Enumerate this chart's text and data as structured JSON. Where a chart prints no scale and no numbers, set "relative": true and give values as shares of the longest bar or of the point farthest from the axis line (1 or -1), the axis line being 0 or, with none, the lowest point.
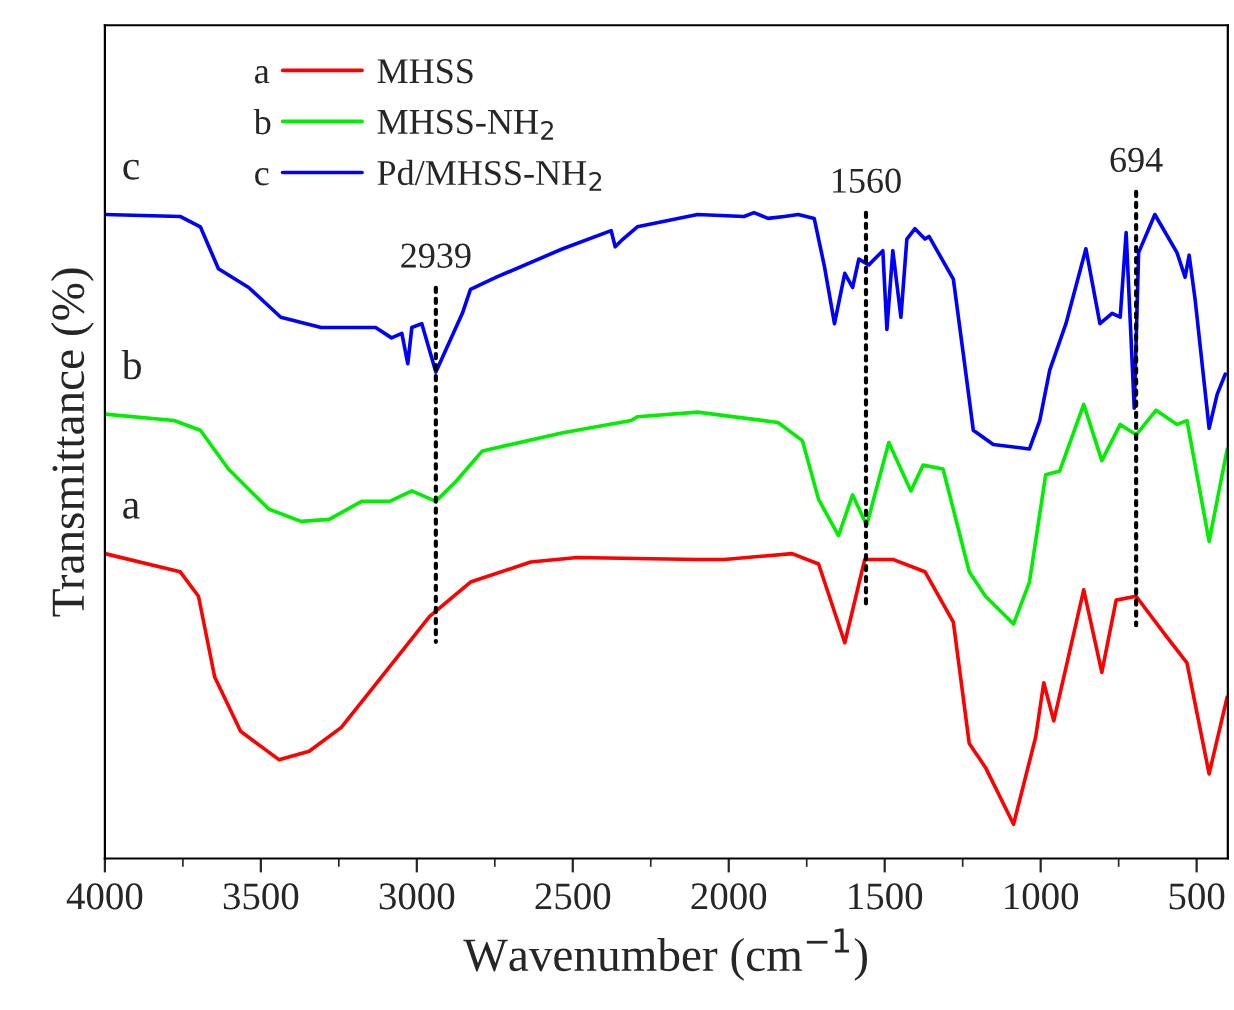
{
  "chart_data": {
    "type": "line",
    "relative": true,
    "xlabel": "Wavenumber (cm$^{−1}$)",
    "ylabel": "Transmittance (%)",
    "xlim": [
      4000,
      400
    ],
    "xticks": [
      4000,
      3500,
      3000,
      2500,
      2000,
      1500,
      1000,
      500
    ],
    "grid": false,
    "legend": "top left",
    "line_style": "solid",
    "marker": "none",
    "series": [
      {
        "name": "MHSS",
        "color": "#ff0000",
        "x": [
          4000,
          3759,
          3700,
          3648,
          3565,
          3442,
          3345,
          3242,
          3113,
          2959,
          2828,
          2635,
          2486,
          2100,
          2015,
          1797,
          1712,
          1628,
          1564,
          1474,
          1371,
          1280,
          1229,
          1177,
          1087,
          1016,
          990,
          958,
          862,
          804,
          758,
          694,
          597,
          531,
          460,
          402
        ],
        "values": [
          0.472,
          0.444,
          0.406,
          0.281,
          0.197,
          0.153,
          0.166,
          0.203,
          0.281,
          0.375,
          0.428,
          0.459,
          0.466,
          0.463,
          0.463,
          0.472,
          0.456,
          0.334,
          0.463,
          0.463,
          0.444,
          0.366,
          0.178,
          0.141,
          0.053,
          0.188,
          0.272,
          0.213,
          0.416,
          0.288,
          0.4,
          0.406,
          0.344,
          0.303,
          0.131,
          0.25
        ]
      },
      {
        "name": "MHSS-NH$_{2}$",
        "color": "#00ee00",
        "x": [
          4000,
          3778,
          3694,
          3604,
          3475,
          3371,
          3281,
          3177,
          3087,
          3016,
          2939,
          2874,
          2790,
          2532,
          2313,
          2293,
          2100,
          1842,
          1764,
          1712,
          1648,
          1603,
          1558,
          1487,
          1416,
          1377,
          1313,
          1229,
          1177,
          1087,
          1036,
          984,
          939,
          862,
          804,
          745,
          694,
          630,
          563,
          531,
          460,
          402
        ],
        "values": [
          0.688,
          0.678,
          0.663,
          0.603,
          0.541,
          0.522,
          0.525,
          0.553,
          0.553,
          0.569,
          0.553,
          0.584,
          0.631,
          0.659,
          0.678,
          0.684,
          0.691,
          0.675,
          0.647,
          0.556,
          0.5,
          0.563,
          0.516,
          0.644,
          0.569,
          0.609,
          0.603,
          0.444,
          0.406,
          0.363,
          0.428,
          0.594,
          0.6,
          0.703,
          0.616,
          0.672,
          0.656,
          0.694,
          0.672,
          0.678,
          0.491,
          0.634
        ]
      },
      {
        "name": "Pd/MHSS-NH$_{2}$",
        "color": "#0000ff",
        "x": [
          4000,
          3759,
          3694,
          3636,
          3539,
          3436,
          3307,
          3132,
          3081,
          3048,
          3029,
          3016,
          2984,
          2939,
          2854,
          2828,
          2745,
          2532,
          2377,
          2364,
          2339,
          2293,
          2100,
          1951,
          1919,
          1874,
          1822,
          1777,
          1726,
          1693,
          1661,
          1628,
          1603,
          1583,
          1551,
          1506,
          1493,
          1474,
          1448,
          1429,
          1403,
          1371,
          1358,
          1280,
          1248,
          1216,
          1152,
          1036,
          1003,
          971,
          919,
          855,
          810,
          771,
          745,
          726,
          700,
          686,
          634,
          563,
          537,
          524,
          505,
          460,
          434,
          408
        ],
        "values": [
          0.997,
          0.994,
          0.978,
          0.913,
          0.884,
          0.838,
          0.822,
          0.822,
          0.806,
          0.813,
          0.766,
          0.822,
          0.828,
          0.753,
          0.844,
          0.881,
          0.9,
          0.944,
          0.972,
          0.947,
          0.959,
          0.978,
          0.997,
          0.994,
          1.0,
          0.991,
          0.994,
          0.997,
          0.991,
          0.916,
          0.828,
          0.906,
          0.884,
          0.928,
          0.919,
          0.941,
          0.819,
          0.941,
          0.838,
          0.959,
          0.975,
          0.959,
          0.963,
          0.897,
          0.781,
          0.663,
          0.641,
          0.634,
          0.678,
          0.756,
          0.828,
          0.944,
          0.828,
          0.844,
          0.838,
          0.969,
          0.697,
          0.938,
          0.997,
          0.938,
          0.9,
          0.934,
          0.866,
          0.666,
          0.719,
          0.75
        ]
      }
    ],
    "annotations": [
      "a",
      "b",
      "c",
      "2939",
      "1560",
      "694"
    ]
  }
}
